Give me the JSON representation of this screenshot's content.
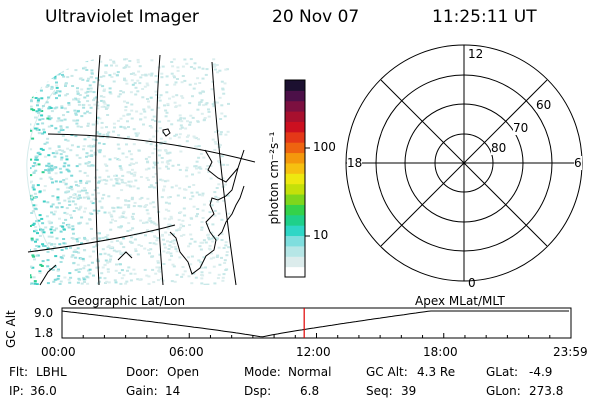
{
  "header": {
    "title": "Ultraviolet Imager",
    "date": "20 Nov 07",
    "time": "11:25:11 UT"
  },
  "colorbar": {
    "unit_label": "photon cm⁻²s⁻¹",
    "tick_100": "100",
    "tick_10": "10",
    "colors": [
      "#ffffff",
      "#dcecec",
      "#b6e6e6",
      "#7fdede",
      "#2fd6c6",
      "#1fd08a",
      "#34d24a",
      "#7ed61c",
      "#c4e00a",
      "#eee810",
      "#f6c010",
      "#f4980c",
      "#ee6410",
      "#e43818",
      "#cc1020",
      "#a8102e",
      "#7c1040",
      "#4c1048",
      "#1c1030"
    ]
  },
  "polar_plot": {
    "label_top": "12",
    "label_left": "18",
    "label_right": "6",
    "label_bottom": "0",
    "ring_60": "60",
    "ring_70": "70",
    "ring_80": "80"
  },
  "timeline": {
    "left_title": "Geographic Lat/Lon",
    "right_title": "Apex MLat/MLT",
    "axis_label": "GC Alt",
    "y_top": "9.0",
    "y_bottom": "1.8",
    "ticks": [
      "00:00",
      "06:00",
      "12:00",
      "18:00",
      "23:59"
    ],
    "marker_fraction": 0.4758,
    "marker_color": "#e00000"
  },
  "info": {
    "flt_label": "Flt:",
    "flt_value": "LBHL",
    "ip_label": "IP:",
    "ip_value": "36.0",
    "door_label": "Door:",
    "door_value": "Open",
    "gain_label": "Gain:",
    "gain_value": "14",
    "mode_label": "Mode:",
    "mode_value": "Normal",
    "dsp_label": "Dsp:",
    "dsp_value": "6.8",
    "gcalt_label": "GC Alt:",
    "gcalt_value": "4.3 Re",
    "seq_label": "Seq:",
    "seq_value": "39",
    "glat_label": "GLat:",
    "glat_value": "-4.9",
    "glon_label": "GLon:",
    "glon_value": "273.8"
  }
}
